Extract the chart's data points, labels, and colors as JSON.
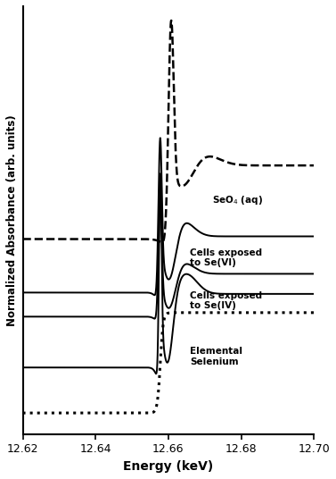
{
  "xlabel": "Energy (keV)",
  "ylabel": "Normalized Absorbance (arb. units)",
  "xlim": [
    12.62,
    12.7
  ],
  "xticks": [
    12.62,
    12.64,
    12.66,
    12.68,
    12.7
  ],
  "xticklabels": [
    "12.62",
    "12.64",
    "12.66",
    "12.68",
    "12.70"
  ],
  "anno_selenate": "SeO$_4$$_{(aq)}$",
  "anno_vi": "Cells exposed\nto Se(VI)",
  "anno_iv": "Cells exposed\nto Se(IV)",
  "anno_ele": "Elemental\nSelenium",
  "figsize": [
    3.77,
    5.36
  ],
  "dpi": 100
}
